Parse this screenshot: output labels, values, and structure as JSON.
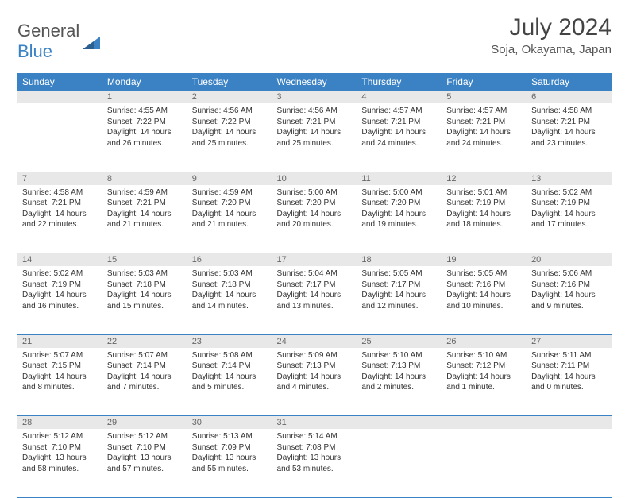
{
  "brand": {
    "name1": "General",
    "name2": "Blue"
  },
  "title": "July 2024",
  "location": "Soja, Okayama, Japan",
  "colors": {
    "header_bg": "#3b82c4",
    "daynum_bg": "#e8e8e8",
    "text": "#333333"
  },
  "day_headers": [
    "Sunday",
    "Monday",
    "Tuesday",
    "Wednesday",
    "Thursday",
    "Friday",
    "Saturday"
  ],
  "weeks": [
    [
      null,
      {
        "n": "1",
        "sunrise": "4:55 AM",
        "sunset": "7:22 PM",
        "daylight": "14 hours and 26 minutes."
      },
      {
        "n": "2",
        "sunrise": "4:56 AM",
        "sunset": "7:22 PM",
        "daylight": "14 hours and 25 minutes."
      },
      {
        "n": "3",
        "sunrise": "4:56 AM",
        "sunset": "7:21 PM",
        "daylight": "14 hours and 25 minutes."
      },
      {
        "n": "4",
        "sunrise": "4:57 AM",
        "sunset": "7:21 PM",
        "daylight": "14 hours and 24 minutes."
      },
      {
        "n": "5",
        "sunrise": "4:57 AM",
        "sunset": "7:21 PM",
        "daylight": "14 hours and 24 minutes."
      },
      {
        "n": "6",
        "sunrise": "4:58 AM",
        "sunset": "7:21 PM",
        "daylight": "14 hours and 23 minutes."
      }
    ],
    [
      {
        "n": "7",
        "sunrise": "4:58 AM",
        "sunset": "7:21 PM",
        "daylight": "14 hours and 22 minutes."
      },
      {
        "n": "8",
        "sunrise": "4:59 AM",
        "sunset": "7:21 PM",
        "daylight": "14 hours and 21 minutes."
      },
      {
        "n": "9",
        "sunrise": "4:59 AM",
        "sunset": "7:20 PM",
        "daylight": "14 hours and 21 minutes."
      },
      {
        "n": "10",
        "sunrise": "5:00 AM",
        "sunset": "7:20 PM",
        "daylight": "14 hours and 20 minutes."
      },
      {
        "n": "11",
        "sunrise": "5:00 AM",
        "sunset": "7:20 PM",
        "daylight": "14 hours and 19 minutes."
      },
      {
        "n": "12",
        "sunrise": "5:01 AM",
        "sunset": "7:19 PM",
        "daylight": "14 hours and 18 minutes."
      },
      {
        "n": "13",
        "sunrise": "5:02 AM",
        "sunset": "7:19 PM",
        "daylight": "14 hours and 17 minutes."
      }
    ],
    [
      {
        "n": "14",
        "sunrise": "5:02 AM",
        "sunset": "7:19 PM",
        "daylight": "14 hours and 16 minutes."
      },
      {
        "n": "15",
        "sunrise": "5:03 AM",
        "sunset": "7:18 PM",
        "daylight": "14 hours and 15 minutes."
      },
      {
        "n": "16",
        "sunrise": "5:03 AM",
        "sunset": "7:18 PM",
        "daylight": "14 hours and 14 minutes."
      },
      {
        "n": "17",
        "sunrise": "5:04 AM",
        "sunset": "7:17 PM",
        "daylight": "14 hours and 13 minutes."
      },
      {
        "n": "18",
        "sunrise": "5:05 AM",
        "sunset": "7:17 PM",
        "daylight": "14 hours and 12 minutes."
      },
      {
        "n": "19",
        "sunrise": "5:05 AM",
        "sunset": "7:16 PM",
        "daylight": "14 hours and 10 minutes."
      },
      {
        "n": "20",
        "sunrise": "5:06 AM",
        "sunset": "7:16 PM",
        "daylight": "14 hours and 9 minutes."
      }
    ],
    [
      {
        "n": "21",
        "sunrise": "5:07 AM",
        "sunset": "7:15 PM",
        "daylight": "14 hours and 8 minutes."
      },
      {
        "n": "22",
        "sunrise": "5:07 AM",
        "sunset": "7:14 PM",
        "daylight": "14 hours and 7 minutes."
      },
      {
        "n": "23",
        "sunrise": "5:08 AM",
        "sunset": "7:14 PM",
        "daylight": "14 hours and 5 minutes."
      },
      {
        "n": "24",
        "sunrise": "5:09 AM",
        "sunset": "7:13 PM",
        "daylight": "14 hours and 4 minutes."
      },
      {
        "n": "25",
        "sunrise": "5:10 AM",
        "sunset": "7:13 PM",
        "daylight": "14 hours and 2 minutes."
      },
      {
        "n": "26",
        "sunrise": "5:10 AM",
        "sunset": "7:12 PM",
        "daylight": "14 hours and 1 minute."
      },
      {
        "n": "27",
        "sunrise": "5:11 AM",
        "sunset": "7:11 PM",
        "daylight": "14 hours and 0 minutes."
      }
    ],
    [
      {
        "n": "28",
        "sunrise": "5:12 AM",
        "sunset": "7:10 PM",
        "daylight": "13 hours and 58 minutes."
      },
      {
        "n": "29",
        "sunrise": "5:12 AM",
        "sunset": "7:10 PM",
        "daylight": "13 hours and 57 minutes."
      },
      {
        "n": "30",
        "sunrise": "5:13 AM",
        "sunset": "7:09 PM",
        "daylight": "13 hours and 55 minutes."
      },
      {
        "n": "31",
        "sunrise": "5:14 AM",
        "sunset": "7:08 PM",
        "daylight": "13 hours and 53 minutes."
      },
      null,
      null,
      null
    ]
  ],
  "labels": {
    "sunrise": "Sunrise:",
    "sunset": "Sunset:",
    "daylight": "Daylight:"
  }
}
